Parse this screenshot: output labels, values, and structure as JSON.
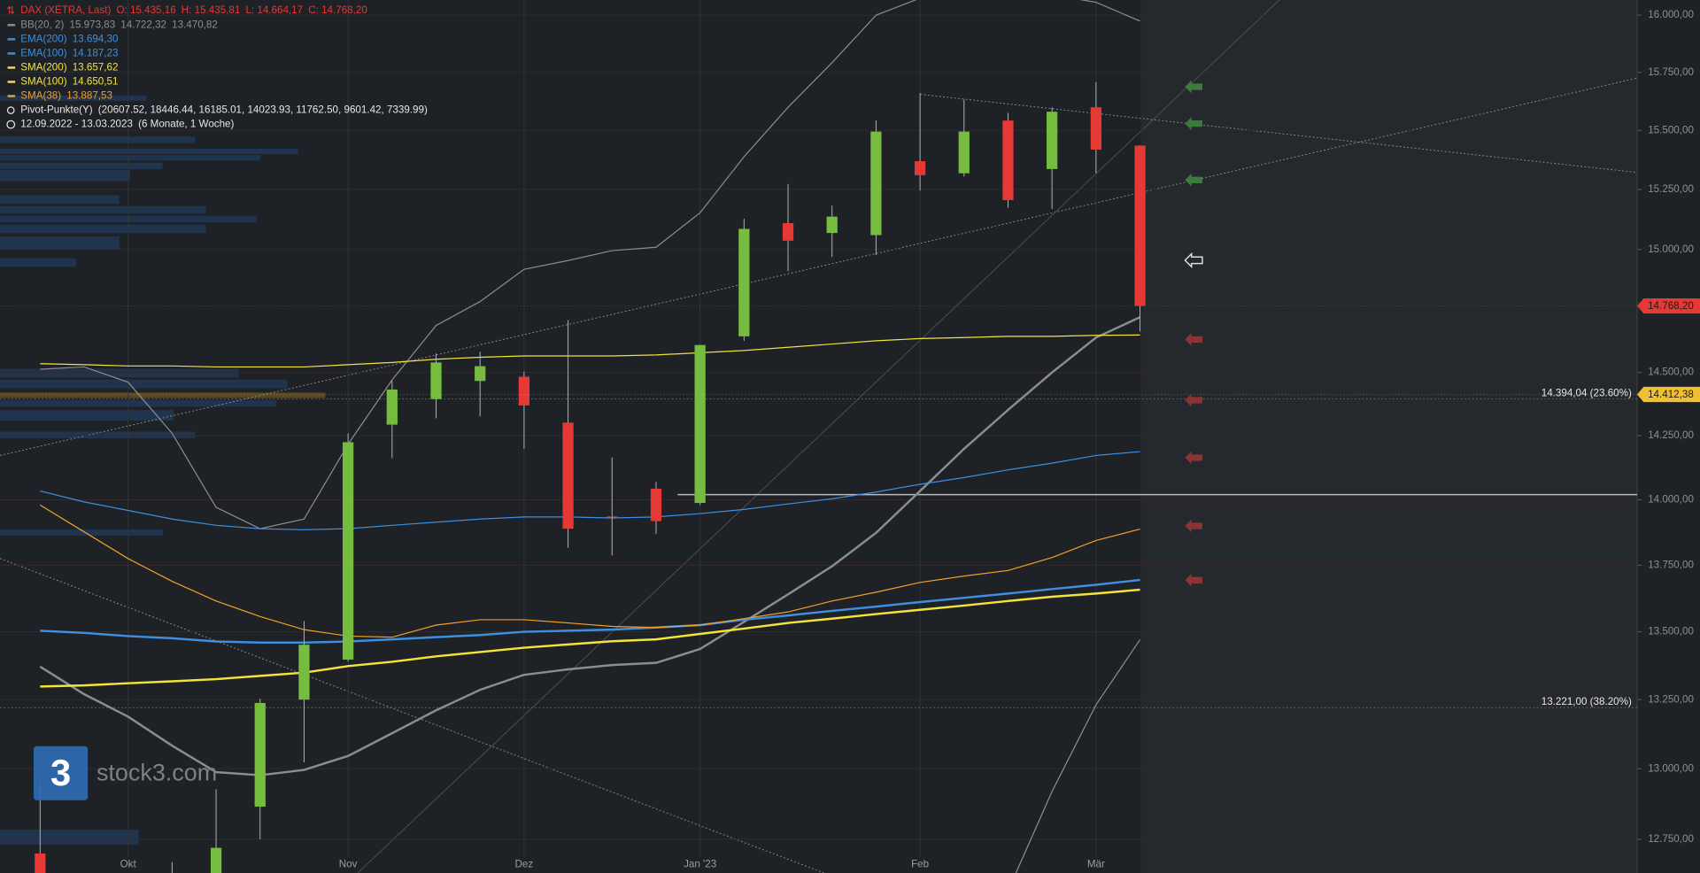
{
  "chart_data": {
    "type": "candlestick",
    "title": "DAX (XETRA, Last)",
    "ohlc_labels": [
      "O: 15.435,16",
      "H: 15.435,81",
      "L: 14.664,17",
      "C: 14.768,20"
    ],
    "date_range": "12.09.2022 - 13.03.2023",
    "period": "(6 Monate, 1 Woche)",
    "categories": [
      null,
      null,
      "Okt",
      null,
      null,
      null,
      null,
      "Nov",
      null,
      null,
      null,
      "Dez",
      null,
      null,
      null,
      "Jan '23",
      null,
      null,
      null,
      null,
      "Feb",
      null,
      null,
      null,
      "Mär",
      null
    ],
    "open": [
      12700,
      null,
      null,
      12620,
      12620,
      12865,
      13250,
      13397,
      14293,
      14394,
      14466,
      14483,
      14301,
      13936,
      14043,
      13988,
      14645,
      15109,
      15068,
      15059,
      15369,
      15318,
      15542,
      15336,
      15599,
      15435.16
    ],
    "high": [
      12950,
      null,
      null,
      12670,
      12927,
      13254,
      13540,
      14259,
      14466,
      14576,
      14583,
      14504,
      14711,
      14164,
      14069,
      14610,
      15127,
      15273,
      15182,
      15542,
      15660,
      15632,
      15575,
      15599,
      15708,
      15435.81
    ],
    "low": [
      12600,
      null,
      null,
      12560,
      12600,
      12750,
      13023,
      13390,
      14161,
      14318,
      14326,
      14198,
      13816,
      13787,
      13869,
      13980,
      14627,
      14910,
      14969,
      14977,
      15245,
      15304,
      15173,
      15168,
      15318,
      14664.17
    ],
    "close": [
      12630,
      null,
      null,
      12600,
      12720,
      13238,
      13452,
      14224,
      14432,
      14540,
      14525,
      14369,
      13889,
      13932,
      13918,
      14610,
      15085,
      15036,
      15136,
      15495,
      15310,
      15495,
      15205,
      15580,
      15418,
      14768.2
    ],
    "up_color": "#76bd3f",
    "down_color": "#e53935",
    "log_scale": true,
    "grid": true,
    "ylim": [
      12632,
      16067
    ],
    "yticks": [
      {
        "value": 12750,
        "label": "12.750,00"
      },
      {
        "value": 13000,
        "label": "13.000,00"
      },
      {
        "value": 13250,
        "label": "13.250,00"
      },
      {
        "value": 13500,
        "label": "13.500,00"
      },
      {
        "value": 13750,
        "label": "13.750,00"
      },
      {
        "value": 14000,
        "label": "14.000,00"
      },
      {
        "value": 14250,
        "label": "14.250,00"
      },
      {
        "value": 14500,
        "label": "14.500,00"
      },
      {
        "value": 15000,
        "label": "15.000,00"
      },
      {
        "value": 15250,
        "label": "15.250,00"
      },
      {
        "value": 15500,
        "label": "15.500,00"
      },
      {
        "value": 15750,
        "label": "15.750,00"
      },
      {
        "value": 16000,
        "label": "16.000,00"
      }
    ],
    "bollinger": {
      "name": "BB(20, 2)",
      "color": "#8a8d92",
      "legend_values": [
        "15.973,83",
        "14.722,32",
        "13.470,82"
      ],
      "upper": [
        14513,
        14522,
        14461,
        14259,
        13971,
        13889,
        13926,
        14216,
        14470,
        14689,
        14786,
        14918,
        14954,
        14995,
        15009,
        15152,
        15388,
        15599,
        15792,
        16000,
        16075,
        16113,
        16113,
        16090,
        16057,
        15973.83
      ],
      "middle": [
        13371,
        13270,
        13188,
        13083,
        12988,
        12977,
        12996,
        13046,
        13128,
        13211,
        13286,
        13341,
        13361,
        13377,
        13385,
        13436,
        13537,
        13640,
        13746,
        13873,
        14034,
        14198,
        14351,
        14500,
        14640,
        14722.32
      ],
      "lower": [
        null,
        null,
        null,
        null,
        null,
        null,
        null,
        null,
        null,
        null,
        null,
        null,
        null,
        null,
        null,
        null,
        null,
        null,
        null,
        null,
        null,
        null,
        12570,
        12919,
        13231,
        13470.82
      ]
    },
    "series": [
      {
        "name": "EMA(200)",
        "color": "#3d8fe0",
        "width": 2,
        "legend_value": "13.694,30",
        "values": [
          13504,
          13496,
          13484,
          13476,
          13464,
          13460,
          13460,
          13464,
          13472,
          13480,
          13488,
          13500,
          13504,
          13508,
          13516,
          13525,
          13545,
          13561,
          13578,
          13594,
          13611,
          13627,
          13643,
          13660,
          13676,
          13694.3
        ]
      },
      {
        "name": "EMA(100)",
        "color": "#3d8fe0",
        "width": 1,
        "legend_value": "14.187,23",
        "values": [
          14034,
          13992,
          13959,
          13926,
          13902,
          13889,
          13885,
          13889,
          13902,
          13914,
          13926,
          13934,
          13934,
          13930,
          13934,
          13947,
          13963,
          13984,
          14004,
          14030,
          14060,
          14086,
          14116,
          14142,
          14172,
          14187.23
        ]
      },
      {
        "name": "SMA(200)",
        "color": "#f2e43a",
        "width": 2,
        "legend_value": "13.657,62",
        "values": [
          13298,
          13302,
          13310,
          13317,
          13325,
          13337,
          13349,
          13373,
          13389,
          13409,
          13425,
          13441,
          13453,
          13465,
          13472,
          13492,
          13512,
          13533,
          13549,
          13566,
          13582,
          13598,
          13615,
          13631,
          13643,
          13657.62
        ]
      },
      {
        "name": "SMA(100)",
        "color": "#f2e43a",
        "width": 1,
        "legend_value": "14.650,51",
        "values": [
          14535,
          14531,
          14526,
          14526,
          14522,
          14522,
          14522,
          14531,
          14540,
          14553,
          14561,
          14566,
          14566,
          14566,
          14570,
          14579,
          14588,
          14601,
          14614,
          14627,
          14636,
          14640,
          14645,
          14645,
          14649,
          14650.51
        ]
      },
      {
        "name": "SMA(38)",
        "color": "#f0a028",
        "width": 1,
        "legend_value": "13.887,53",
        "values": [
          13980,
          13877,
          13775,
          13689,
          13615,
          13557,
          13508,
          13484,
          13480,
          13525,
          13545,
          13545,
          13533,
          13520,
          13516,
          13525,
          13549,
          13574,
          13615,
          13648,
          13685,
          13709,
          13730,
          13779,
          13844,
          13887.53
        ]
      }
    ],
    "pivot": {
      "name": "Pivot-Punkte(Y)",
      "label": "(20607.52,  18446.44,  16185.01,  14023.93,  11762.50,  9601.42,  7339.99)"
    },
    "price_tags": [
      {
        "value": 14768.2,
        "label": "14.768,20",
        "color": "#e53935"
      },
      {
        "value": 14412.38,
        "label": "14.412,38",
        "color": "#f0c030"
      }
    ],
    "fib_levels": [
      {
        "value": 14394.04,
        "label": "14.394,04 (23.60%)"
      },
      {
        "value": 13221.0,
        "label": "13.221,00 (38.20%)"
      }
    ],
    "hlines": [
      14020
    ],
    "watermark": "stock3.com",
    "logo": "3"
  }
}
